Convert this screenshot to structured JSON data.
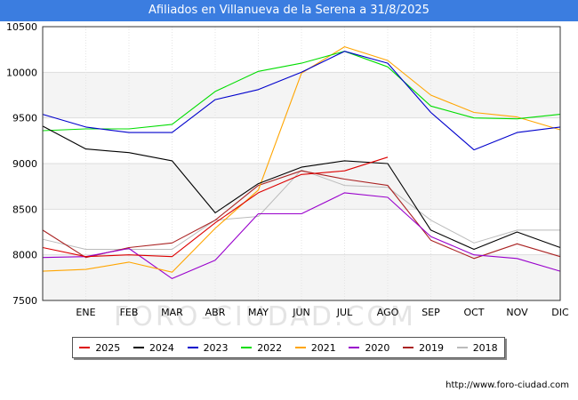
{
  "title": "Afiliados en Villanueva de la Serena a 31/8/2025",
  "watermark": "FORO-CIUDAD.COM",
  "footer_url": "http://www.foro-ciudad.com",
  "chart_data": {
    "type": "line",
    "categories": [
      "",
      "ENE",
      "FEB",
      "MAR",
      "ABR",
      "MAY",
      "JUN",
      "JUL",
      "AGO",
      "SEP",
      "OCT",
      "NOV",
      "DIC"
    ],
    "ylim": [
      7500,
      10500
    ],
    "yticks": [
      7500,
      8000,
      8500,
      9000,
      9500,
      10000,
      10500
    ],
    "grid": true,
    "legend_position": "bottom",
    "series": [
      {
        "name": "2025",
        "color": "#dd0000",
        "width": 1.1,
        "values": [
          8080,
          7980,
          8000,
          7980,
          8350,
          8680,
          8880,
          8920,
          9070,
          null,
          null,
          null,
          null
        ]
      },
      {
        "name": "2024",
        "color": "#000000",
        "width": 1.1,
        "values": [
          9410,
          9160,
          9120,
          9030,
          8460,
          8780,
          8960,
          9030,
          9000,
          8270,
          8060,
          8250,
          8080
        ]
      },
      {
        "name": "2023",
        "color": "#0000cc",
        "width": 1.1,
        "values": [
          9540,
          9400,
          9340,
          9340,
          9700,
          9810,
          10000,
          10230,
          10100,
          9560,
          9150,
          9340,
          9400
        ]
      },
      {
        "name": "2022",
        "color": "#00dd00",
        "width": 1.1,
        "values": [
          9360,
          9380,
          9380,
          9430,
          9790,
          10010,
          10100,
          10230,
          10060,
          9630,
          9500,
          9490,
          9540
        ]
      },
      {
        "name": "2021",
        "color": "#ffa500",
        "width": 1.1,
        "values": [
          7820,
          7840,
          7920,
          7810,
          8290,
          8710,
          9990,
          10280,
          10130,
          9750,
          9560,
          9510,
          9370
        ]
      },
      {
        "name": "2020",
        "color": "#9900cc",
        "width": 1.1,
        "values": [
          7970,
          7980,
          8070,
          7740,
          7940,
          8450,
          8450,
          8680,
          8630,
          8200,
          8000,
          7960,
          7820
        ]
      },
      {
        "name": "2019",
        "color": "#aa2222",
        "width": 1.1,
        "values": [
          8270,
          7970,
          8080,
          8130,
          8380,
          8760,
          8920,
          8830,
          8760,
          8160,
          7960,
          8120,
          7980
        ]
      },
      {
        "name": "2018",
        "color": "#bbbbbb",
        "width": 1.0,
        "values": [
          8170,
          8060,
          8060,
          8060,
          8380,
          8420,
          8930,
          8760,
          8740,
          8380,
          8130,
          8270,
          8270
        ]
      }
    ]
  }
}
